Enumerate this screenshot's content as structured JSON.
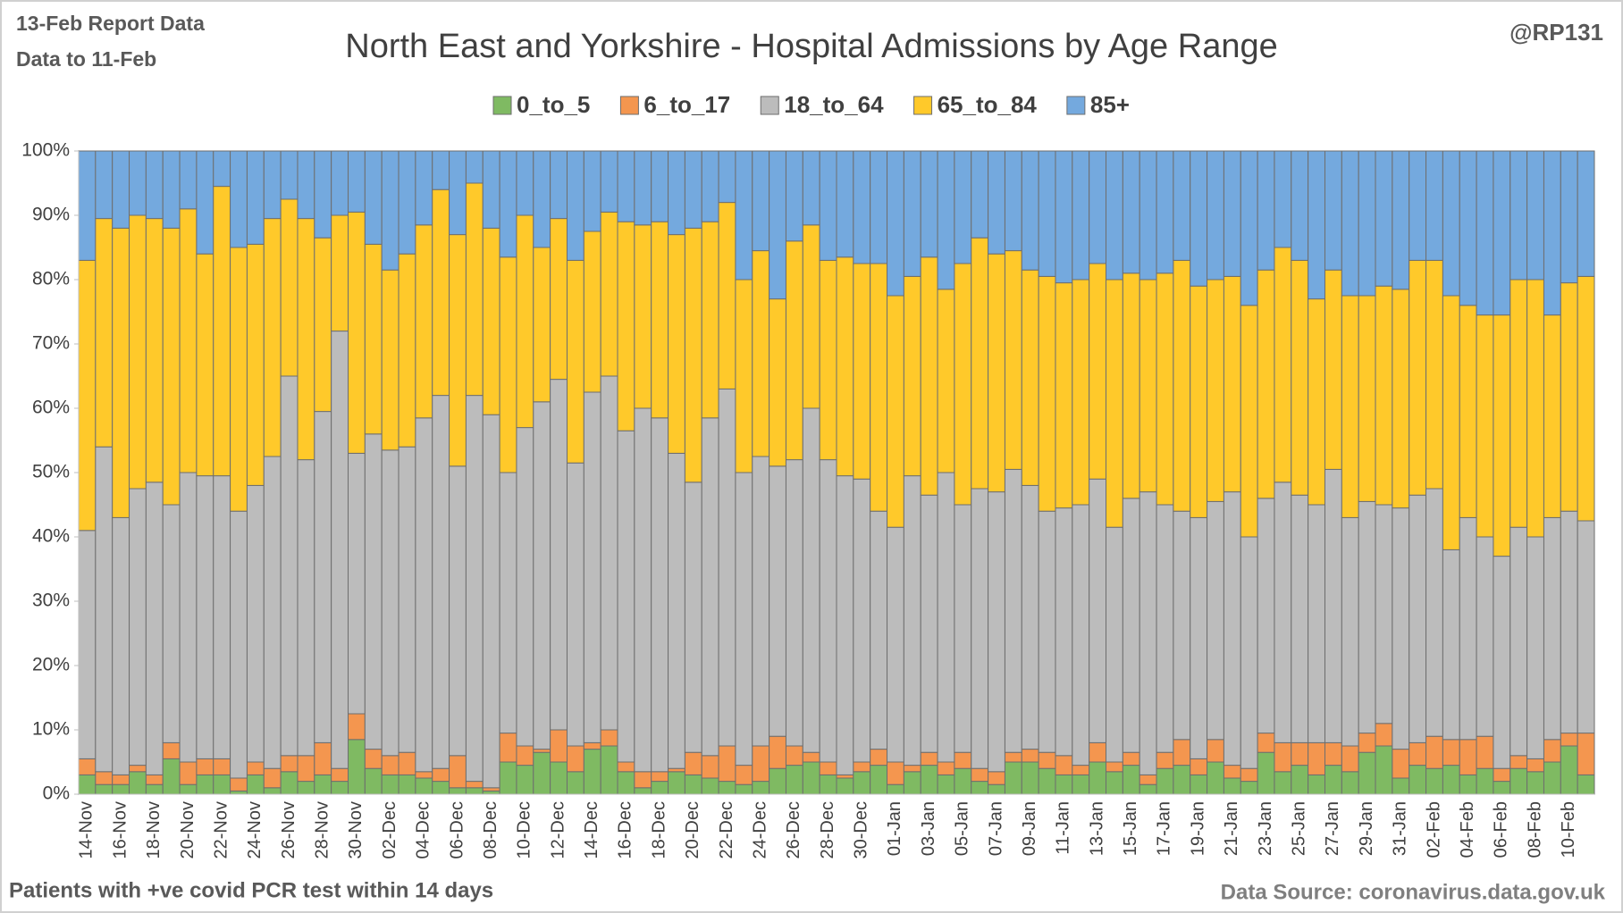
{
  "chart_data": {
    "type": "stacked_bar_100",
    "title": "North East and Yorkshire - Hospital Admissions by Age Range",
    "report_note": "13-Feb Report Data",
    "data_note": "Data to 11-Feb",
    "author": "@RP131",
    "footnote": "Patients with  +ve covid PCR test within 14 days",
    "source": "Data Source: coronavirus.data.gov.uk",
    "categories": [
      "14-Nov",
      null,
      "16-Nov",
      null,
      "18-Nov",
      null,
      "20-Nov",
      null,
      "22-Nov",
      null,
      "24-Nov",
      null,
      "26-Nov",
      null,
      "28-Nov",
      null,
      "30-Nov",
      null,
      "02-Dec",
      null,
      "04-Dec",
      null,
      "06-Dec",
      null,
      "08-Dec",
      null,
      "10-Dec",
      null,
      "12-Dec",
      null,
      "14-Dec",
      null,
      "16-Dec",
      null,
      "18-Dec",
      null,
      "20-Dec",
      null,
      "22-Dec",
      null,
      "24-Dec",
      null,
      "26-Dec",
      null,
      "28-Dec",
      null,
      "30-Dec",
      null,
      "01-Jan",
      null,
      "03-Jan",
      null,
      "05-Jan",
      null,
      "07-Jan",
      null,
      "09-Jan",
      null,
      "11-Jan",
      null,
      "13-Jan",
      null,
      "15-Jan",
      null,
      "17-Jan",
      null,
      "19-Jan",
      null,
      "21-Jan",
      null,
      "23-Jan",
      null,
      "25-Jan",
      null,
      "27-Jan",
      null,
      "29-Jan",
      null,
      "31-Jan",
      null,
      "02-Feb",
      null,
      "04-Feb",
      null,
      "06-Feb",
      null,
      "08-Feb",
      null,
      "10-Feb",
      null
    ],
    "series": [
      {
        "name": "0_to_5",
        "color": "#7fba62",
        "values": [
          3,
          1.5,
          1.5,
          3.5,
          1.5,
          5.5,
          1.5,
          3,
          3,
          0.5,
          3,
          1,
          3.5,
          2,
          3,
          2,
          8.5,
          4,
          3,
          3,
          2.5,
          2,
          1,
          1,
          0.5,
          5,
          4.5,
          6.5,
          5,
          3.5,
          7,
          7.5,
          3.5,
          1,
          2,
          3.5,
          3,
          2.5,
          2,
          1.5,
          2,
          4,
          4.5,
          5,
          3,
          2.5,
          3.5,
          4.5,
          1.5,
          3.5,
          4.5,
          3,
          4,
          2,
          1.5,
          5,
          5,
          4,
          3,
          3,
          5,
          3.5,
          4.5,
          1.5,
          4,
          4.5,
          3,
          5,
          2.5,
          2,
          6.5,
          3.5,
          4.5,
          3,
          4.5,
          3.5,
          6.5,
          7.5,
          2.5,
          4.5,
          4,
          4.5,
          3,
          4,
          2,
          4,
          3.5,
          5,
          7.5,
          3
        ]
      },
      {
        "name": "6_to_17",
        "color": "#f4964f",
        "values": [
          2.5,
          2,
          1.5,
          1,
          1.5,
          2.5,
          3.5,
          2.5,
          2.5,
          2,
          2,
          3,
          2.5,
          4,
          5,
          2,
          4,
          3,
          3,
          3.5,
          1,
          2,
          5,
          1,
          0.5,
          4.5,
          3,
          0.5,
          5,
          4,
          1,
          2.5,
          1.5,
          2.5,
          1.5,
          0.5,
          3.5,
          3.5,
          5.5,
          3,
          5.5,
          5,
          3,
          1.5,
          2,
          0.5,
          1.5,
          2.5,
          3.5,
          1,
          2,
          2,
          2.5,
          2,
          2,
          1.5,
          2,
          2.5,
          3,
          1.5,
          3,
          1.5,
          2,
          1.5,
          2.5,
          4,
          2.5,
          3.5,
          2,
          2,
          3,
          4.5,
          3.5,
          5,
          3.5,
          4,
          3,
          3.5,
          4.5,
          3.5,
          5,
          4,
          5.5,
          5,
          2,
          2,
          2,
          3.5,
          2,
          6.5
        ]
      },
      {
        "name": "18_to_64",
        "color": "#bcbcbc",
        "values": [
          35.5,
          50.5,
          40,
          43,
          45.5,
          37,
          45,
          44,
          44,
          41.5,
          43,
          48.5,
          59,
          46,
          51.5,
          68,
          40.5,
          49,
          47.5,
          47.5,
          55,
          58,
          45,
          60,
          58,
          40.5,
          49.5,
          54,
          54.5,
          44,
          54.5,
          55,
          51.5,
          56.5,
          55,
          49,
          42,
          52.5,
          55.5,
          45.5,
          45,
          42,
          44.5,
          53.5,
          47,
          46.5,
          44,
          37,
          36.5,
          45,
          40,
          45,
          38.5,
          43.5,
          43.5,
          44,
          41,
          37.5,
          38.5,
          40.5,
          41,
          36.5,
          39.5,
          44,
          38.5,
          35.5,
          37.5,
          37,
          42.5,
          36,
          36.5,
          40.5,
          38.5,
          37,
          42.5,
          35.5,
          36,
          34,
          37.5,
          38.5,
          38.5,
          29.5,
          34.5,
          31,
          33,
          35.5,
          34.5,
          34.5,
          34.5,
          33
        ]
      },
      {
        "name": "65_to_84",
        "color": "#ffc92a",
        "values": [
          42,
          35.5,
          45,
          42.5,
          41,
          43,
          41,
          34.5,
          45,
          41,
          37.5,
          37,
          27.5,
          37.5,
          27,
          18,
          37.5,
          29.5,
          28,
          30,
          30,
          32,
          36,
          33,
          29,
          33.5,
          33,
          24,
          25,
          31.5,
          25,
          25.5,
          32.5,
          28.5,
          30.5,
          34,
          39.5,
          30.5,
          29,
          30,
          32,
          26,
          34,
          28.5,
          31,
          34,
          33.5,
          38.5,
          36,
          31,
          37,
          28.5,
          37.5,
          39,
          37,
          34,
          33.5,
          36.5,
          35,
          35,
          33.5,
          38.5,
          35,
          33,
          36,
          39,
          36,
          34.5,
          33.5,
          36,
          35.5,
          36.5,
          36.5,
          32,
          31,
          34.5,
          32,
          34,
          34,
          36.5,
          35.5,
          39.5,
          33,
          34.5,
          37.5,
          38.5,
          40,
          31.5,
          35.5,
          38
        ]
      },
      {
        "name": "85+",
        "color": "#74a9de",
        "values": [
          17,
          10.5,
          12,
          10,
          10.5,
          12,
          9,
          16,
          5.5,
          15,
          14.5,
          10.5,
          7.5,
          10.5,
          13.5,
          10,
          9.5,
          14.5,
          18.5,
          16,
          11.5,
          6,
          13,
          5,
          12,
          16.5,
          10,
          15,
          10.5,
          17,
          12.5,
          9.5,
          11,
          11.5,
          11,
          13,
          12,
          11,
          8,
          20,
          15.5,
          23,
          14,
          11.5,
          17,
          16.5,
          17.5,
          17.5,
          22.5,
          19.5,
          16.5,
          21.5,
          17.5,
          13.5,
          16,
          15.5,
          18.5,
          19.5,
          20.5,
          20,
          17.5,
          20,
          19,
          20,
          19,
          17,
          21,
          20,
          19.5,
          24,
          18.5,
          15,
          17,
          23,
          18.5,
          22.5,
          22.5,
          21,
          21.5,
          17,
          17,
          22.5,
          24,
          25.5,
          25.5,
          20,
          20,
          25.5,
          20.5,
          19.5
        ]
      }
    ],
    "ylim": [
      0,
      100
    ],
    "yticks": [
      {
        "value": 0,
        "label": "0%"
      },
      {
        "value": 10,
        "label": "10%"
      },
      {
        "value": 20,
        "label": "20%"
      },
      {
        "value": 30,
        "label": "30%"
      },
      {
        "value": 40,
        "label": "40%"
      },
      {
        "value": 50,
        "label": "50%"
      },
      {
        "value": 60,
        "label": "60%"
      },
      {
        "value": 70,
        "label": "70%"
      },
      {
        "value": 80,
        "label": "80%"
      },
      {
        "value": 90,
        "label": "90%"
      },
      {
        "value": 100,
        "label": "100%"
      }
    ],
    "legend": "top"
  }
}
